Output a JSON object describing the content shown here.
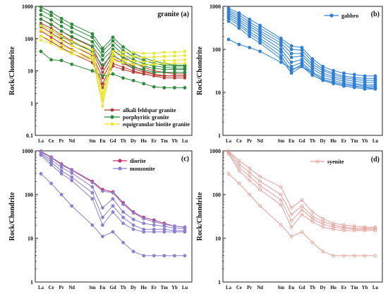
{
  "elements": [
    "La",
    "Ce",
    "Pr",
    "Nd",
    "Sm",
    "Eu",
    "Gd",
    "Tb",
    "Dy",
    "Ho",
    "Er",
    "Tm",
    "Yb",
    "Lu"
  ],
  "chart_data": [
    {
      "type": "line",
      "panel": "a",
      "title": "granite (a)",
      "ylabel": "Rock/Chondrite",
      "yscale": "log",
      "ylim": [
        0.1,
        1000
      ],
      "yticks": [
        "1000",
        "100",
        "10",
        "1",
        "0.1"
      ],
      "legend_position": "bottom-right",
      "legend": [
        {
          "label": "alkali feldspar granite",
          "color": "#b5362e",
          "marker": "square"
        },
        {
          "label": "porphyritic granite",
          "color": "#2e8b3c",
          "marker": "circle"
        },
        {
          "label": "equigranular biotite granite",
          "color": "#e8e62a",
          "marker": "square"
        }
      ],
      "series": [
        {
          "group": "alkali feldspar granite",
          "color": "#b5362e",
          "marker": "square",
          "values": [
            400,
            280,
            170,
            110,
            55,
            12,
            42,
            28,
            18,
            13,
            10,
            9,
            8,
            8
          ]
        },
        {
          "group": "alkali feldspar granite",
          "color": "#b5362e",
          "marker": "square",
          "values": [
            300,
            210,
            130,
            85,
            40,
            9,
            30,
            20,
            14,
            10,
            8,
            7,
            7,
            7
          ]
        },
        {
          "group": "alkali feldspar granite",
          "color": "#b5362e",
          "marker": "square",
          "values": [
            230,
            150,
            95,
            62,
            30,
            6,
            24,
            17,
            12,
            9,
            8,
            7,
            7,
            7
          ]
        },
        {
          "group": "alkali feldspar granite",
          "color": "#b5362e",
          "marker": "square",
          "values": [
            170,
            110,
            70,
            46,
            22,
            4,
            17,
            13,
            10,
            8,
            7,
            7,
            7,
            7
          ]
        },
        {
          "group": "alkali feldspar granite",
          "color": "#b5362e",
          "marker": "square",
          "values": [
            120,
            80,
            52,
            35,
            18,
            3,
            14,
            11,
            9,
            8,
            7,
            6,
            6,
            6
          ]
        },
        {
          "group": "porphyritic granite",
          "color": "#2e8b3c",
          "marker": "circle",
          "values": [
            950,
            650,
            420,
            280,
            140,
            50,
            110,
            55,
            35,
            25,
            20,
            17,
            15,
            15
          ]
        },
        {
          "group": "porphyritic granite",
          "color": "#2e8b3c",
          "marker": "circle",
          "values": [
            750,
            520,
            330,
            220,
            110,
            40,
            85,
            42,
            28,
            21,
            17,
            15,
            14,
            14
          ]
        },
        {
          "group": "porphyritic granite",
          "color": "#2e8b3c",
          "marker": "circle",
          "values": [
            550,
            380,
            240,
            160,
            80,
            30,
            62,
            32,
            22,
            17,
            14,
            13,
            12,
            12
          ]
        },
        {
          "group": "porphyritic granite",
          "color": "#2e8b3c",
          "marker": "circle",
          "values": [
            400,
            270,
            170,
            115,
            58,
            22,
            46,
            25,
            18,
            14,
            12,
            11,
            11,
            11
          ]
        },
        {
          "group": "porphyritic granite",
          "color": "#2e8b3c",
          "marker": "circle",
          "values": [
            260,
            180,
            115,
            78,
            40,
            15,
            32,
            18,
            13,
            11,
            9,
            9,
            9,
            9
          ]
        },
        {
          "group": "porphyritic granite",
          "color": "#2e8b3c",
          "marker": "circle",
          "values": [
            40,
            22,
            21,
            16,
            10,
            7,
            8,
            6,
            5,
            4,
            3.2,
            3,
            3,
            3
          ]
        },
        {
          "group": "equigranular biotite granite",
          "color": "#e8e62a",
          "marker": "square",
          "values": [
            250,
            180,
            120,
            80,
            45,
            2,
            40,
            38,
            38,
            35,
            35,
            38,
            38,
            40
          ]
        },
        {
          "group": "equigranular biotite granite",
          "color": "#e8e62a",
          "marker": "square",
          "values": [
            180,
            130,
            88,
            60,
            34,
            1.5,
            32,
            30,
            28,
            26,
            27,
            28,
            29,
            30
          ]
        },
        {
          "group": "equigranular biotite granite",
          "color": "#e8e62a",
          "marker": "square",
          "values": [
            120,
            90,
            62,
            43,
            26,
            0.8,
            24,
            22,
            20,
            19,
            20,
            21,
            21,
            22
          ]
        },
        {
          "group": "equigranular biotite granite",
          "color": "#e8e62a",
          "marker": "square",
          "values": [
            90,
            70,
            48,
            34,
            22,
            1.2,
            20,
            18,
            16,
            15,
            16,
            17,
            17,
            17
          ]
        }
      ]
    },
    {
      "type": "line",
      "panel": "b",
      "title": "(b)",
      "ylabel": "Rock/Chondrite",
      "yscale": "log",
      "ylim": [
        1,
        1000
      ],
      "yticks": [
        "1000",
        "100",
        "10",
        "1"
      ],
      "legend_position": "top-right",
      "legend": [
        {
          "label": "gabbro",
          "color": "#2e7fd6",
          "marker": "circle"
        }
      ],
      "series": [
        {
          "group": "gabbro",
          "color": "#2e7fd6",
          "marker": "circle",
          "values": [
            900,
            700,
            500,
            360,
            180,
            120,
            110,
            60,
            40,
            32,
            28,
            26,
            24,
            24
          ]
        },
        {
          "group": "gabbro",
          "color": "#2e7fd6",
          "marker": "circle",
          "values": [
            820,
            630,
            430,
            310,
            160,
            100,
            95,
            52,
            35,
            28,
            24,
            22,
            21,
            21
          ]
        },
        {
          "group": "gabbro",
          "color": "#2e7fd6",
          "marker": "circle",
          "values": [
            760,
            560,
            380,
            270,
            140,
            80,
            80,
            45,
            32,
            26,
            22,
            20,
            19,
            19
          ]
        },
        {
          "group": "gabbro",
          "color": "#2e7fd6",
          "marker": "circle",
          "values": [
            700,
            500,
            340,
            240,
            120,
            65,
            70,
            40,
            28,
            23,
            20,
            18,
            17,
            17
          ]
        },
        {
          "group": "gabbro",
          "color": "#2e7fd6",
          "marker": "circle",
          "values": [
            640,
            450,
            300,
            210,
            100,
            50,
            58,
            35,
            25,
            21,
            18,
            16,
            15,
            15
          ]
        },
        {
          "group": "gabbro",
          "color": "#2e7fd6",
          "marker": "circle",
          "values": [
            580,
            400,
            260,
            180,
            85,
            40,
            50,
            30,
            22,
            19,
            16,
            15,
            14,
            14
          ]
        },
        {
          "group": "gabbro",
          "color": "#2e7fd6",
          "marker": "circle",
          "values": [
            520,
            360,
            230,
            160,
            70,
            32,
            45,
            28,
            20,
            17,
            15,
            14,
            13,
            13
          ]
        },
        {
          "group": "gabbro",
          "color": "#2e7fd6",
          "marker": "circle",
          "values": [
            450,
            310,
            200,
            140,
            60,
            28,
            40,
            25,
            19,
            16,
            14,
            13,
            12,
            12
          ]
        },
        {
          "group": "gabbro",
          "color": "#2e7fd6",
          "marker": "circle",
          "values": [
            170,
            130,
            110,
            90,
            50,
            35,
            40,
            28,
            20,
            17,
            15,
            14,
            13,
            12
          ]
        }
      ]
    },
    {
      "type": "line",
      "panel": "c",
      "title": "(c)",
      "ylabel": "Rock/Chondrite",
      "yscale": "log",
      "ylim": [
        1,
        1000
      ],
      "yticks": [
        "1000",
        "100",
        "10",
        "1"
      ],
      "legend_position": "top-left",
      "legend": [
        {
          "label": "diorite",
          "color": "#c0306a",
          "marker": "circle"
        },
        {
          "label": "monzonite",
          "color": "#8e7fcf",
          "marker": "circle"
        }
      ],
      "series": [
        {
          "group": "diorite",
          "color": "#c0306a",
          "marker": "circle",
          "values": [
            980,
            720,
            500,
            370,
            200,
            130,
            115,
            65,
            40,
            30,
            26,
            22,
            19,
            18
          ]
        },
        {
          "group": "monzonite",
          "color": "#8e7fcf",
          "marker": "circle",
          "values": [
            950,
            700,
            480,
            360,
            190,
            120,
            110,
            60,
            38,
            28,
            24,
            21,
            19,
            18
          ]
        },
        {
          "group": "monzonite",
          "color": "#8e7fcf",
          "marker": "circle",
          "values": [
            900,
            620,
            420,
            310,
            150,
            50,
            80,
            40,
            27,
            22,
            20,
            19,
            17,
            17
          ]
        },
        {
          "group": "monzonite",
          "color": "#8e7fcf",
          "marker": "circle",
          "values": [
            850,
            550,
            350,
            250,
            110,
            30,
            55,
            30,
            20,
            16,
            16,
            16,
            15,
            15
          ]
        },
        {
          "group": "monzonite",
          "color": "#8e7fcf",
          "marker": "circle",
          "values": [
            800,
            480,
            300,
            210,
            80,
            20,
            40,
            22,
            16,
            14,
            14,
            14,
            14,
            14
          ]
        },
        {
          "group": "monzonite",
          "color": "#8e7fcf",
          "marker": "circle",
          "values": [
            300,
            180,
            100,
            55,
            20,
            11,
            14,
            8,
            5,
            4,
            4,
            4,
            4,
            4
          ]
        }
      ]
    },
    {
      "type": "line",
      "panel": "d",
      "title": "(d)",
      "ylabel": "Rock/Chondrite",
      "yscale": "log",
      "ylim": [
        1,
        1000
      ],
      "yticks": [
        "1000",
        "100",
        "10",
        "1"
      ],
      "legend_position": "top-right",
      "legend": [
        {
          "label": "syenite",
          "color": "#e3a39b",
          "marker": "circle"
        }
      ],
      "series": [
        {
          "group": "syenite",
          "color": "#e3a39b",
          "marker": "circle",
          "values": [
            980,
            600,
            400,
            260,
            150,
            50,
            75,
            40,
            28,
            22,
            20,
            19,
            18,
            18
          ]
        },
        {
          "group": "syenite",
          "color": "#e3a39b",
          "marker": "circle",
          "values": [
            950,
            500,
            320,
            200,
            100,
            35,
            55,
            32,
            24,
            20,
            18,
            17,
            17,
            17
          ]
        },
        {
          "group": "syenite",
          "color": "#e3a39b",
          "marker": "circle",
          "values": [
            900,
            420,
            260,
            160,
            75,
            25,
            45,
            28,
            21,
            18,
            17,
            16,
            16,
            16
          ]
        },
        {
          "group": "syenite",
          "color": "#e3a39b",
          "marker": "circle",
          "values": [
            850,
            350,
            210,
            130,
            58,
            18,
            35,
            24,
            18,
            16,
            15,
            15,
            15,
            15
          ]
        },
        {
          "group": "syenite",
          "color": "#e3a39b",
          "marker": "circle",
          "values": [
            300,
            180,
            100,
            55,
            20,
            11,
            14,
            8,
            5,
            4,
            4,
            4,
            4,
            4
          ]
        }
      ]
    }
  ]
}
